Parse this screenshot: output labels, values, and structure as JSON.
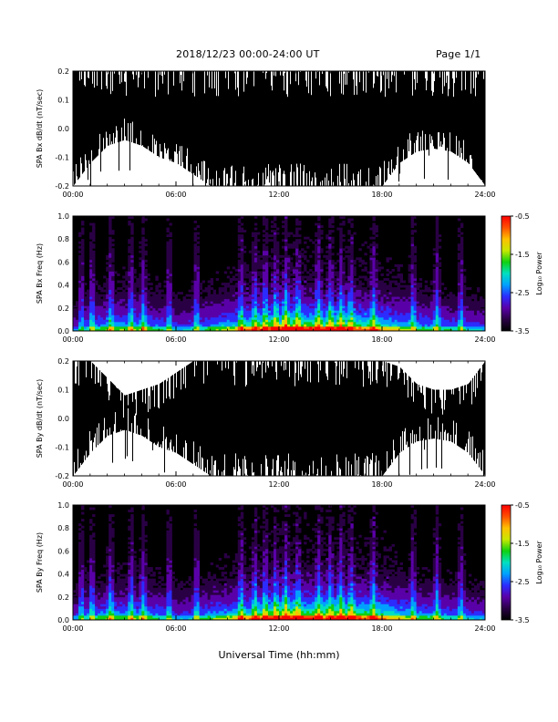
{
  "header": {
    "title": "2018/12/23  00:00-24:00 UT",
    "page": "Page 1/1"
  },
  "colors": {
    "trace": "#000000",
    "colormap": [
      "#000000",
      "#2a0045",
      "#5a00a8",
      "#2c2cff",
      "#00a0ff",
      "#00e0c0",
      "#10d010",
      "#c8e800",
      "#ffc000",
      "#ff5000",
      "#ff0000"
    ]
  },
  "chart_data": [
    {
      "type": "line",
      "ylabel": "SPA Bx dB/dt (nT/sec)",
      "xlim": [
        "00:00",
        "24:00"
      ],
      "ylim": [
        -0.2,
        0.2
      ],
      "x_ticks": [
        "00:00",
        "06:00",
        "12:00",
        "18:00",
        "24:00"
      ],
      "y_ticks": [
        "0.2",
        "0.1",
        "0.0",
        "-0.1",
        "-0.2"
      ],
      "series": [
        {
          "x": [
            "00:00",
            "01:00",
            "02:00",
            "03:00",
            "04:00",
            "05:00",
            "06:00",
            "07:00",
            "08:00",
            "09:00",
            "10:00",
            "11:00",
            "12:00",
            "13:00",
            "14:00",
            "15:00",
            "16:00",
            "17:00",
            "18:00",
            "19:00",
            "20:00",
            "21:00",
            "22:00",
            "23:00",
            "24:00"
          ],
          "max": [
            0.2,
            0.2,
            0.2,
            0.2,
            0.2,
            0.2,
            0.2,
            0.2,
            0.2,
            0.2,
            0.2,
            0.2,
            0.2,
            0.2,
            0.2,
            0.2,
            0.2,
            0.2,
            0.2,
            0.2,
            0.2,
            0.2,
            0.2,
            0.2,
            0.2
          ],
          "min": [
            -0.2,
            -0.12,
            -0.06,
            -0.04,
            -0.06,
            -0.1,
            -0.12,
            -0.16,
            -0.2,
            -0.2,
            -0.2,
            -0.2,
            -0.2,
            -0.2,
            -0.2,
            -0.2,
            -0.2,
            -0.2,
            -0.2,
            -0.12,
            -0.08,
            -0.07,
            -0.08,
            -0.12,
            -0.2
          ]
        }
      ]
    },
    {
      "type": "heatmap",
      "ylabel": "SPA Bx Freq (Hz)",
      "xlim": [
        "00:00",
        "24:00"
      ],
      "ylim": [
        0,
        1.0
      ],
      "x_ticks": [
        "00:00",
        "06:00",
        "12:00",
        "18:00",
        "24:00"
      ],
      "y_ticks": [
        "1.0",
        "0.8",
        "0.6",
        "0.4",
        "0.2",
        "0.0"
      ],
      "colorbar": {
        "label": "Log₁₀ Power",
        "range": [
          -3.5,
          -0.5
        ],
        "ticks": [
          "-0.5",
          "-1.5",
          "-2.5",
          "-3.5"
        ]
      },
      "activity_hours": [
        0.3,
        0.5,
        0.6,
        0.6,
        0.6,
        0.5,
        0.4,
        0.5,
        0.6,
        0.7,
        0.8,
        0.9,
        1.0,
        0.95,
        0.9,
        0.9,
        0.85,
        0.8,
        0.7,
        0.6,
        0.55,
        0.5,
        0.45,
        0.4
      ],
      "bursts_hours": [
        0.5,
        1.1,
        2.2,
        3.4,
        4.1,
        5.6,
        7.2,
        9.8,
        10.6,
        11.2,
        11.8,
        12.4,
        13.1,
        14.3,
        15.0,
        15.6,
        16.2,
        17.5,
        19.8,
        21.2,
        22.6
      ]
    },
    {
      "type": "line",
      "ylabel": "SPA By dB/dt (nT/sec)",
      "xlim": [
        "00:00",
        "24:00"
      ],
      "ylim": [
        -0.2,
        0.2
      ],
      "x_ticks": [
        "00:00",
        "06:00",
        "12:00",
        "18:00",
        "24:00"
      ],
      "y_ticks": [
        "0.2",
        "0.1",
        "0.0",
        "-0.1",
        "-0.2"
      ],
      "series": [
        {
          "x": [
            "00:00",
            "01:00",
            "02:00",
            "03:00",
            "04:00",
            "05:00",
            "06:00",
            "07:00",
            "08:00",
            "09:00",
            "10:00",
            "11:00",
            "12:00",
            "13:00",
            "14:00",
            "15:00",
            "16:00",
            "17:00",
            "18:00",
            "19:00",
            "20:00",
            "21:00",
            "22:00",
            "23:00",
            "24:00"
          ],
          "max": [
            0.2,
            0.2,
            0.14,
            0.08,
            0.1,
            0.12,
            0.16,
            0.2,
            0.2,
            0.2,
            0.2,
            0.2,
            0.2,
            0.2,
            0.2,
            0.2,
            0.2,
            0.2,
            0.2,
            0.18,
            0.12,
            0.1,
            0.1,
            0.12,
            0.2
          ],
          "min": [
            -0.2,
            -0.12,
            -0.06,
            -0.04,
            -0.06,
            -0.1,
            -0.12,
            -0.16,
            -0.2,
            -0.2,
            -0.2,
            -0.2,
            -0.2,
            -0.2,
            -0.2,
            -0.2,
            -0.2,
            -0.2,
            -0.2,
            -0.12,
            -0.08,
            -0.07,
            -0.08,
            -0.12,
            -0.2
          ]
        }
      ]
    },
    {
      "type": "heatmap",
      "ylabel": "SPA By Freq (Hz)",
      "xlim": [
        "00:00",
        "24:00"
      ],
      "ylim": [
        0,
        1.0
      ],
      "x_ticks": [
        "00:00",
        "06:00",
        "12:00",
        "18:00",
        "24:00"
      ],
      "y_ticks": [
        "1.0",
        "0.8",
        "0.6",
        "0.4",
        "0.2",
        "0.0"
      ],
      "colorbar": {
        "label": "Log₁₀ Power",
        "range": [
          -3.5,
          -0.5
        ],
        "ticks": [
          "-0.5",
          "-1.5",
          "-2.5",
          "-3.5"
        ]
      },
      "activity_hours": [
        0.35,
        0.5,
        0.6,
        0.6,
        0.6,
        0.5,
        0.4,
        0.5,
        0.6,
        0.7,
        0.8,
        0.9,
        1.0,
        0.95,
        0.9,
        0.95,
        0.9,
        0.85,
        0.75,
        0.6,
        0.55,
        0.5,
        0.45,
        0.4
      ],
      "bursts_hours": [
        0.5,
        1.1,
        2.2,
        3.4,
        4.1,
        5.6,
        7.2,
        9.8,
        10.6,
        11.2,
        11.8,
        12.4,
        13.1,
        14.3,
        15.0,
        15.6,
        16.2,
        17.5,
        19.8,
        21.2,
        22.6
      ]
    }
  ],
  "xlabel": "Universal Time (hh:mm)"
}
